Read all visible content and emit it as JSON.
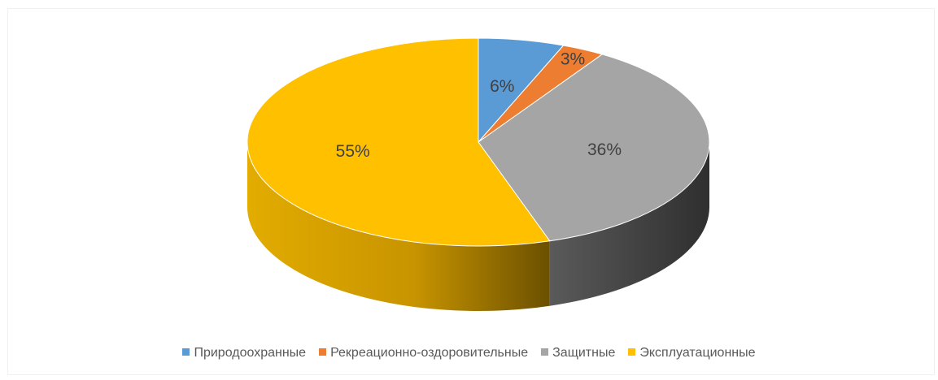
{
  "chart_data": {
    "type": "pie",
    "title": "",
    "categories": [
      "Природоохранные",
      "Рекреационно-оздоровительные",
      "Защитные",
      "Эксплуатационные"
    ],
    "values": [
      6,
      3,
      36,
      55
    ],
    "labels": [
      "6%",
      "3%",
      "36%",
      "55%"
    ],
    "colors": [
      "#5b9bd5",
      "#ed7d31",
      "#a5a5a5",
      "#ffc000"
    ],
    "style": "3d",
    "legend_position": "bottom"
  }
}
